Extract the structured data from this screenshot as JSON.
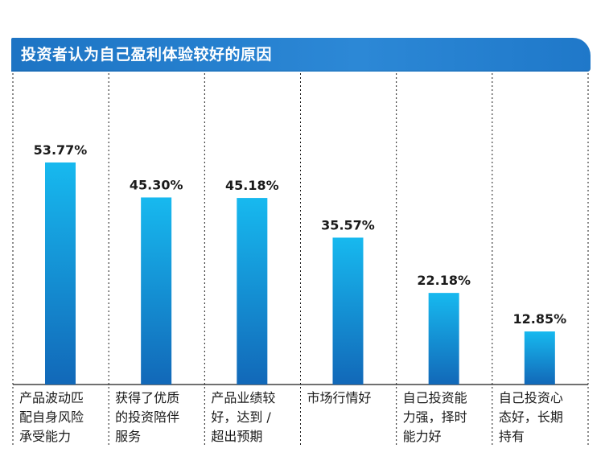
{
  "chart_data": {
    "type": "bar",
    "title": "投资者认为自己盈利体验较好的原因",
    "unit": "%",
    "categories": [
      [
        "产品波动匹",
        "配自身风险",
        "承受能力"
      ],
      [
        "获得了优质",
        "的投资陪伴",
        "服务"
      ],
      [
        "产品业绩较",
        "好，达到 /",
        "超出预期"
      ],
      [
        "市场行情好"
      ],
      [
        "自己投资能",
        "力强，择时",
        "能力好"
      ],
      [
        "自己投资心",
        "态好，长期",
        "持有"
      ]
    ],
    "values": [
      53.77,
      45.3,
      45.18,
      35.57,
      22.18,
      12.85
    ],
    "value_labels": [
      "53.77%",
      "45.30%",
      "45.18%",
      "35.57%",
      "22.18%",
      "12.85%"
    ],
    "ylim": [
      0,
      60
    ],
    "xlabel": "",
    "ylabel": "",
    "grid": false,
    "colors": {
      "bar_top": "#17b9ef",
      "bar_bottom": "#1268b8",
      "title_bg": "#1e76c8",
      "title_text": "#ffffff",
      "divider": "#1a1a1a"
    }
  }
}
